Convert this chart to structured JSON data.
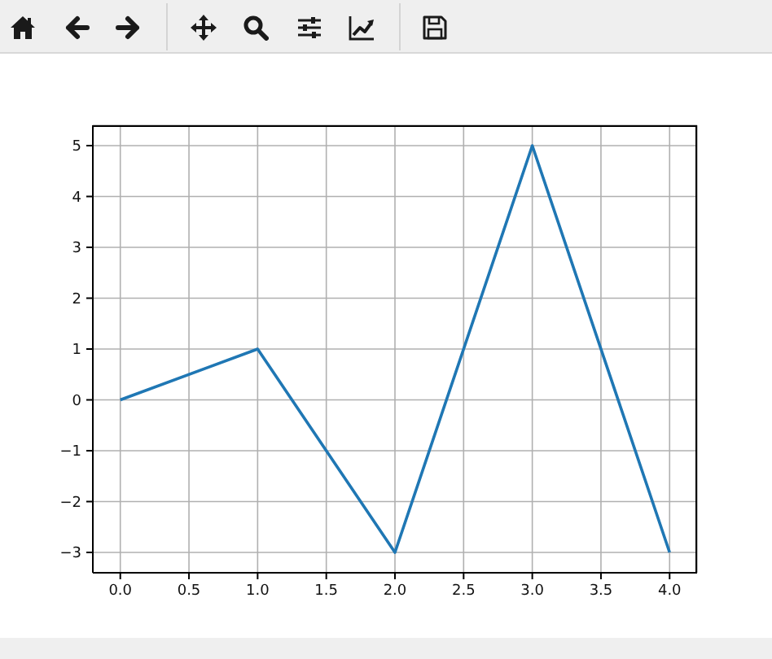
{
  "chart_data": {
    "type": "line",
    "x": [
      0,
      1,
      2,
      3,
      4
    ],
    "series": [
      {
        "color": "#1f77b4",
        "values": [
          0,
          1,
          -3,
          5,
          -3
        ]
      }
    ],
    "xlim": [
      -0.2,
      4.2
    ],
    "ylim": [
      -3.4,
      5.4
    ],
    "xticks": [
      {
        "value": 0,
        "label": "0.0"
      },
      {
        "value": 0.5,
        "label": "0.5"
      },
      {
        "value": 1,
        "label": "1.0"
      },
      {
        "value": 1.5,
        "label": "1.5"
      },
      {
        "value": 2,
        "label": "2.0"
      },
      {
        "value": 2.5,
        "label": "2.5"
      },
      {
        "value": 3,
        "label": "3.0"
      },
      {
        "value": 3.5,
        "label": "3.5"
      },
      {
        "value": 4,
        "label": "4.0"
      }
    ],
    "yticks": [
      {
        "value": -3,
        "label": "−3"
      },
      {
        "value": -2,
        "label": "−2"
      },
      {
        "value": -1,
        "label": "−1"
      },
      0,
      1,
      2,
      3,
      4,
      5
    ],
    "grid": true,
    "line_style": "solid"
  }
}
